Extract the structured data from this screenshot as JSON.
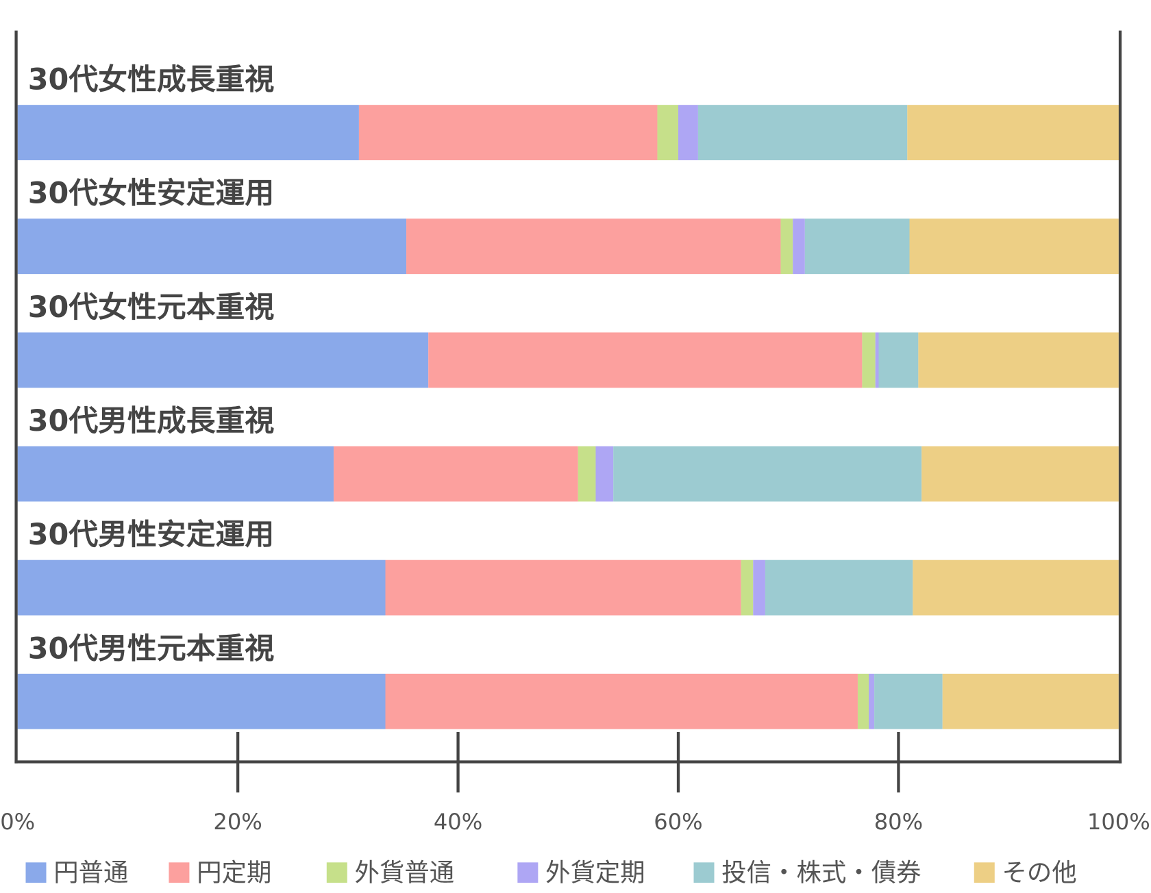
{
  "chart_data": {
    "type": "stacked-bar-horizontal",
    "categories": [
      "30代女性成長重視",
      "30代女性安定運用",
      "30代女性元本重視",
      "30代男性成長重視",
      "30代男性安定運用",
      "30代男性元本重視"
    ],
    "series": [
      {
        "name": "円普通",
        "color": "#8aa9ea",
        "values": [
          31.0,
          35.3,
          37.3,
          28.7,
          33.4,
          33.4
        ]
      },
      {
        "name": "円定期",
        "color": "#fca09e",
        "values": [
          27.1,
          34.0,
          39.4,
          22.2,
          32.3,
          42.9
        ]
      },
      {
        "name": "外貨普通",
        "color": "#c6e08a",
        "values": [
          1.9,
          1.1,
          1.2,
          1.6,
          1.1,
          1.0
        ]
      },
      {
        "name": "外貨定期",
        "color": "#aea6f4",
        "values": [
          1.8,
          1.1,
          0.3,
          1.6,
          1.1,
          0.5
        ]
      },
      {
        "name": "投信・株式・債券",
        "color": "#9ccbd1",
        "values": [
          19.0,
          9.5,
          3.6,
          28.0,
          13.4,
          6.2
        ]
      },
      {
        "name": "その他",
        "color": "#edcf85",
        "values": [
          19.3,
          19.0,
          18.2,
          17.9,
          18.7,
          16.0
        ]
      }
    ],
    "xlim": [
      0,
      100
    ],
    "xticks": [
      {
        "value": 0,
        "label": "0%"
      },
      {
        "value": 20,
        "label": "20%"
      },
      {
        "value": 40,
        "label": "40%"
      },
      {
        "value": 60,
        "label": "60%"
      },
      {
        "value": 80,
        "label": "80%"
      },
      {
        "value": 100,
        "label": "100%"
      }
    ]
  }
}
